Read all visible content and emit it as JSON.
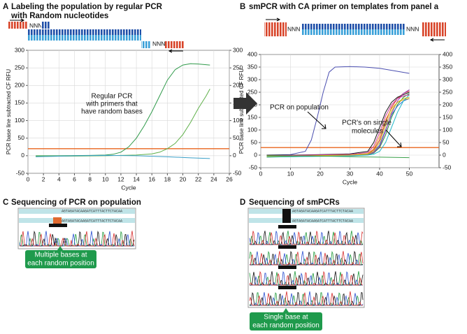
{
  "chart_data": [
    {
      "type": "line",
      "label": "A",
      "title": [
        "Labeling the population by regular PCR",
        "with Random nucleotides"
      ],
      "xlabel": "Cycle",
      "ylabel": "PCR base line subtracted CF RFU",
      "xlim": [
        0,
        26
      ],
      "xticks": [
        0,
        2,
        4,
        6,
        8,
        10,
        12,
        14,
        16,
        18,
        20,
        22,
        24,
        26
      ],
      "ylim": [
        -50,
        300
      ],
      "yticks": [
        -50,
        0,
        50,
        100,
        150,
        200,
        250,
        300
      ],
      "y2lim": [
        -50,
        300
      ],
      "y2ticks": [
        -50,
        0,
        50,
        100,
        150,
        200,
        250,
        300
      ],
      "grid": true,
      "threshold": 20,
      "threshold_color": "#e8641e",
      "annotation": [
        "Regular PCR",
        "with primers that",
        "have random bases"
      ],
      "series": [
        {
          "color": "#2f9a4a",
          "x": [
            1,
            4,
            8,
            10,
            11,
            12,
            13,
            14,
            15,
            16,
            17,
            18,
            19,
            20,
            21,
            22,
            23.5
          ],
          "values": [
            0,
            0,
            1,
            2,
            4,
            10,
            25,
            50,
            85,
            125,
            170,
            215,
            245,
            258,
            262,
            261,
            258
          ]
        },
        {
          "color": "#5fb04a",
          "x": [
            1,
            6,
            10,
            14,
            16,
            17,
            18,
            19,
            20,
            21,
            22,
            23,
            23.5
          ],
          "values": [
            -2,
            -1,
            0,
            2,
            5,
            10,
            20,
            35,
            60,
            95,
            135,
            170,
            190
          ]
        },
        {
          "color": "#3aa0c8",
          "x": [
            1,
            6,
            10,
            14,
            18,
            21,
            23.5
          ],
          "values": [
            -3,
            0,
            1,
            0,
            -3,
            -6,
            -8
          ]
        }
      ]
    },
    {
      "type": "line",
      "label": "B",
      "title": [
        "smPCR with CA primer on templates from panel a"
      ],
      "xlabel": "Cycle",
      "ylabel": "PCR base line subtracted CF RFU",
      "xlim": [
        0,
        60
      ],
      "xticks": [
        0,
        10,
        20,
        30,
        40,
        50
      ],
      "ylim": [
        -50,
        400
      ],
      "yticks": [
        -50,
        0,
        50,
        100,
        150,
        200,
        250,
        300,
        350,
        400
      ],
      "y2lim": [
        -50,
        400
      ],
      "y2ticks": [
        -50,
        0,
        50,
        100,
        150,
        200,
        250,
        300,
        350,
        400
      ],
      "grid": true,
      "threshold": 30,
      "threshold_color": "#e8641e",
      "annotation": [
        "PCR on population",
        "PCR's on single",
        "molecules"
      ],
      "series": [
        {
          "color": "#4b4fb0",
          "x": [
            2,
            10,
            15,
            17,
            19,
            21,
            23,
            25,
            30,
            35,
            40,
            45,
            50
          ],
          "values": [
            0,
            2,
            15,
            60,
            150,
            250,
            330,
            350,
            352,
            350,
            345,
            335,
            325
          ]
        },
        {
          "color": "#d62d2d",
          "x": [
            2,
            10,
            20,
            30,
            36,
            38,
            40,
            42,
            44,
            46,
            48,
            50
          ],
          "values": [
            -5,
            -3,
            -2,
            0,
            5,
            20,
            60,
            130,
            190,
            225,
            245,
            255
          ]
        },
        {
          "color": "#1e8a3a",
          "x": [
            2,
            10,
            20,
            30,
            36,
            38,
            40,
            42,
            44,
            46,
            48,
            50
          ],
          "values": [
            -8,
            -6,
            -4,
            -2,
            2,
            8,
            30,
            80,
            150,
            200,
            230,
            245
          ]
        },
        {
          "color": "#111111",
          "x": [
            2,
            10,
            20,
            30,
            36,
            38,
            40,
            42,
            44,
            46,
            48,
            50
          ],
          "values": [
            0,
            0,
            2,
            5,
            15,
            50,
            110,
            170,
            210,
            230,
            240,
            250
          ]
        },
        {
          "color": "#2f6fd0",
          "x": [
            2,
            10,
            20,
            30,
            36,
            38,
            40,
            42,
            44,
            46,
            48,
            50
          ],
          "values": [
            -3,
            -2,
            0,
            2,
            4,
            12,
            40,
            100,
            160,
            195,
            215,
            225
          ]
        },
        {
          "color": "#9b3fb5",
          "x": [
            2,
            10,
            20,
            30,
            36,
            38,
            40,
            42,
            44,
            46,
            48,
            50
          ],
          "values": [
            -6,
            -5,
            -3,
            -1,
            3,
            10,
            35,
            95,
            165,
            215,
            245,
            260
          ]
        },
        {
          "color": "#e89a1e",
          "x": [
            2,
            10,
            20,
            30,
            36,
            38,
            40,
            42,
            44,
            46,
            48,
            50
          ],
          "values": [
            -4,
            -3,
            -1,
            1,
            6,
            25,
            75,
            140,
            185,
            210,
            220,
            225
          ]
        },
        {
          "color": "#20b8c8",
          "x": [
            2,
            10,
            20,
            30,
            36,
            38,
            40,
            42,
            44,
            46,
            48,
            50
          ],
          "values": [
            -7,
            -6,
            -5,
            -3,
            0,
            4,
            15,
            50,
            110,
            170,
            215,
            240
          ]
        },
        {
          "color": "#d03c9a",
          "x": [
            2,
            10,
            20,
            30,
            36,
            38,
            40,
            42,
            44,
            46,
            48,
            50
          ],
          "values": [
            -2,
            -1,
            1,
            3,
            10,
            35,
            90,
            155,
            200,
            225,
            235,
            240
          ]
        },
        {
          "color": "#c8c020",
          "x": [
            2,
            10,
            20,
            30,
            36,
            38,
            40,
            42,
            44,
            46,
            48,
            50
          ],
          "values": [
            -5,
            -4,
            -2,
            0,
            4,
            15,
            50,
            115,
            175,
            210,
            225,
            230
          ]
        },
        {
          "color": "#3aa04a",
          "x": [
            2,
            10,
            20,
            30,
            40,
            50
          ],
          "values": [
            -2,
            -3,
            -4,
            -6,
            -8,
            -10
          ]
        }
      ]
    }
  ],
  "diagram": {
    "random": "NNN"
  },
  "panel_c": {
    "label": "C",
    "title": "Sequencing of PCR on population",
    "sequence": "AGTAGATACAAGATCATTTACTTCTACAA",
    "callout": [
      "Multiple bases at",
      "each random position"
    ]
  },
  "panel_d": {
    "label": "D",
    "title": "Sequencing of smPCRs",
    "sequence": "AGTAGATACAAGATCATTTACTTCTACAA",
    "callout": [
      "Single base at",
      "each random position"
    ]
  }
}
